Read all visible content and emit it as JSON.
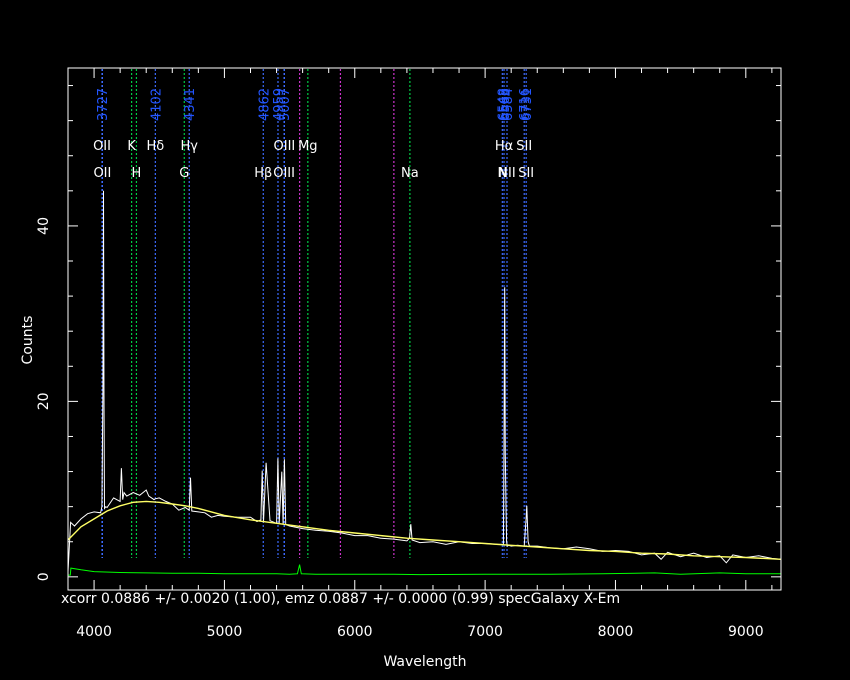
{
  "chart_data": {
    "type": "line",
    "title": "",
    "xlabel": "Wavelength",
    "ylabel": "Counts",
    "xlim": [
      3800,
      9270
    ],
    "ylim": [
      -1.5,
      58
    ],
    "x_ticks": [
      4000,
      5000,
      6000,
      7000,
      8000,
      9000
    ],
    "y_ticks": [
      0,
      20,
      40
    ],
    "grid": false,
    "footer": "xcorr  0.0886 +/- 0.0020 (1.00), emz  0.0887 +/- 0.0000 (0.99) specGalaxy X-Em",
    "colors": {
      "background": "#000000",
      "frame": "#ffffff",
      "flux": "#ffffff",
      "model": "#ffff66",
      "error": "#00ff00",
      "emission_line": "#3d6bff",
      "absorption_line": "#00cc44",
      "sky_line": "#cc33cc",
      "line_label": "#ffffff",
      "wavelength_label": "#2255ff"
    },
    "series": [
      {
        "name": "flux",
        "x": [
          3800,
          3820,
          3850,
          3900,
          3950,
          4000,
          4050,
          4060,
          4068,
          4072,
          4076,
          4080,
          4090,
          4100,
          4150,
          4200,
          4210,
          4220,
          4230,
          4250,
          4300,
          4350,
          4400,
          4420,
          4460,
          4470,
          4500,
          4550,
          4600,
          4650,
          4700,
          4730,
          4740,
          4750,
          4800,
          4850,
          4900,
          4950,
          5000,
          5100,
          5200,
          5250,
          5280,
          5290,
          5300,
          5320,
          5350,
          5400,
          5410,
          5420,
          5440,
          5450,
          5460,
          5470,
          5480,
          5500,
          5600,
          5700,
          5800,
          5900,
          6000,
          6100,
          6200,
          6300,
          6400,
          6420,
          6430,
          6440,
          6500,
          6600,
          6700,
          6800,
          6900,
          7000,
          7100,
          7140,
          7145,
          7150,
          7155,
          7160,
          7165,
          7170,
          7180,
          7200,
          7250,
          7300,
          7315,
          7320,
          7330,
          7340,
          7400,
          7500,
          7600,
          7700,
          7800,
          7900,
          8000,
          8100,
          8200,
          8300,
          8350,
          8400,
          8500,
          8600,
          8700,
          8800,
          8850,
          8900,
          9000,
          9100,
          9200,
          9270
        ],
        "y": [
          0.6,
          6.2,
          5.8,
          6.6,
          7.2,
          7.4,
          7.3,
          8.0,
          21.0,
          44.0,
          20.0,
          7.8,
          8.0,
          7.9,
          9.0,
          8.6,
          12.4,
          8.8,
          9.6,
          9.2,
          9.6,
          9.3,
          9.9,
          9.2,
          8.8,
          8.9,
          9.0,
          8.6,
          8.3,
          7.6,
          7.9,
          7.6,
          11.3,
          7.5,
          7.4,
          7.3,
          6.8,
          7.0,
          6.9,
          6.8,
          6.8,
          6.3,
          6.5,
          12.1,
          6.2,
          13.0,
          6.4,
          6.1,
          13.5,
          6.1,
          12.0,
          6.0,
          13.4,
          6.0,
          5.9,
          5.8,
          5.5,
          5.3,
          5.2,
          5.0,
          4.7,
          4.7,
          4.4,
          4.3,
          4.1,
          4.4,
          6.0,
          4.2,
          3.9,
          4.0,
          3.7,
          4.0,
          3.8,
          3.8,
          3.7,
          3.7,
          15.0,
          33.0,
          14.0,
          8.0,
          4.0,
          3.5,
          3.6,
          3.5,
          3.6,
          3.5,
          6.8,
          8.1,
          4.0,
          3.5,
          3.5,
          3.3,
          3.2,
          3.4,
          3.2,
          2.9,
          3.0,
          2.9,
          2.5,
          2.7,
          2.0,
          2.8,
          2.3,
          2.7,
          2.2,
          2.4,
          1.6,
          2.5,
          2.2,
          2.4,
          2.1,
          2.0
        ]
      },
      {
        "name": "model",
        "x": [
          3800,
          3900,
          4000,
          4100,
          4200,
          4300,
          4400,
          4500,
          4600,
          4700,
          4800,
          4900,
          5000,
          5200,
          5400,
          5600,
          5800,
          6000,
          6200,
          6400,
          6600,
          6800,
          7000,
          7200,
          7400,
          7600,
          7800,
          8000,
          8200,
          8400,
          8600,
          8800,
          9000,
          9270
        ],
        "y": [
          4.2,
          5.7,
          6.6,
          7.5,
          8.1,
          8.5,
          8.6,
          8.5,
          8.3,
          8.1,
          7.8,
          7.4,
          7.0,
          6.5,
          6.1,
          5.7,
          5.3,
          5.0,
          4.7,
          4.4,
          4.2,
          4.0,
          3.8,
          3.6,
          3.4,
          3.2,
          3.0,
          2.9,
          2.7,
          2.6,
          2.4,
          2.3,
          2.2,
          2.0
        ]
      },
      {
        "name": "error",
        "x": [
          3800,
          3818,
          3822,
          3900,
          4000,
          4200,
          4400,
          4600,
          4800,
          5000,
          5200,
          5400,
          5500,
          5560,
          5577,
          5590,
          5700,
          5900,
          6000,
          6300,
          6500,
          7000,
          7200,
          7500,
          7900,
          8300,
          8500,
          8800,
          9000,
          9270
        ],
        "y": [
          0.2,
          0.2,
          1.0,
          0.8,
          0.6,
          0.5,
          0.45,
          0.4,
          0.4,
          0.35,
          0.35,
          0.35,
          0.3,
          0.35,
          1.4,
          0.35,
          0.3,
          0.3,
          0.3,
          0.3,
          0.25,
          0.3,
          0.3,
          0.3,
          0.35,
          0.45,
          0.3,
          0.45,
          0.35,
          0.35
        ]
      }
    ],
    "markers": [
      {
        "x": 4061,
        "kind": "emission",
        "row": 1,
        "label": "OII",
        "wlabel": "3727"
      },
      {
        "x": 4064,
        "kind": "emission",
        "row": 2,
        "label": "OII",
        "wlabel": ""
      },
      {
        "x": 4288,
        "kind": "absorption",
        "row": 1,
        "label": "K",
        "wlabel": ""
      },
      {
        "x": 4325,
        "kind": "absorption",
        "row": 2,
        "label": "H",
        "wlabel": ""
      },
      {
        "x": 4470,
        "kind": "emission",
        "row": 1,
        "label": "Hδ",
        "wlabel": "4102"
      },
      {
        "x": 4692,
        "kind": "absorption",
        "row": 2,
        "label": "G",
        "wlabel": ""
      },
      {
        "x": 4730,
        "kind": "emission",
        "row": 1,
        "label": "Hγ",
        "wlabel": "4341"
      },
      {
        "x": 5298,
        "kind": "emission",
        "row": 2,
        "label": "Hβ",
        "wlabel": "4862"
      },
      {
        "x": 5411,
        "kind": "emission",
        "row": 1,
        "label": "",
        "wlabel": "4959"
      },
      {
        "x": 5458,
        "kind": "emission",
        "row": 2,
        "label": "OIII",
        "wlabel": "5007"
      },
      {
        "x": 5460,
        "kind": "emission",
        "row": 1,
        "label": "OIII",
        "wlabel": ""
      },
      {
        "x": 5577,
        "kind": "sky",
        "row": 0,
        "label": "",
        "wlabel": ""
      },
      {
        "x": 5640,
        "kind": "absorption",
        "row": 1,
        "label": "Mg",
        "wlabel": ""
      },
      {
        "x": 5890,
        "kind": "sky",
        "row": 0,
        "label": "",
        "wlabel": ""
      },
      {
        "x": 6300,
        "kind": "sky",
        "row": 0,
        "label": "",
        "wlabel": ""
      },
      {
        "x": 6423,
        "kind": "absorption",
        "row": 2,
        "label": "Na",
        "wlabel": ""
      },
      {
        "x": 7132,
        "kind": "emission",
        "row": 2,
        "label": "N",
        "wlabel": "6548"
      },
      {
        "x": 7145,
        "kind": "emission",
        "row": 1,
        "label": "Hα",
        "wlabel": "6563"
      },
      {
        "x": 7168,
        "kind": "emission",
        "row": 2,
        "label": "NII",
        "wlabel": "6584"
      },
      {
        "x": 7300,
        "kind": "emission",
        "row": 1,
        "label": "SII",
        "wlabel": "6716"
      },
      {
        "x": 7315,
        "kind": "emission",
        "row": 2,
        "label": "SII",
        "wlabel": "6731"
      }
    ]
  }
}
